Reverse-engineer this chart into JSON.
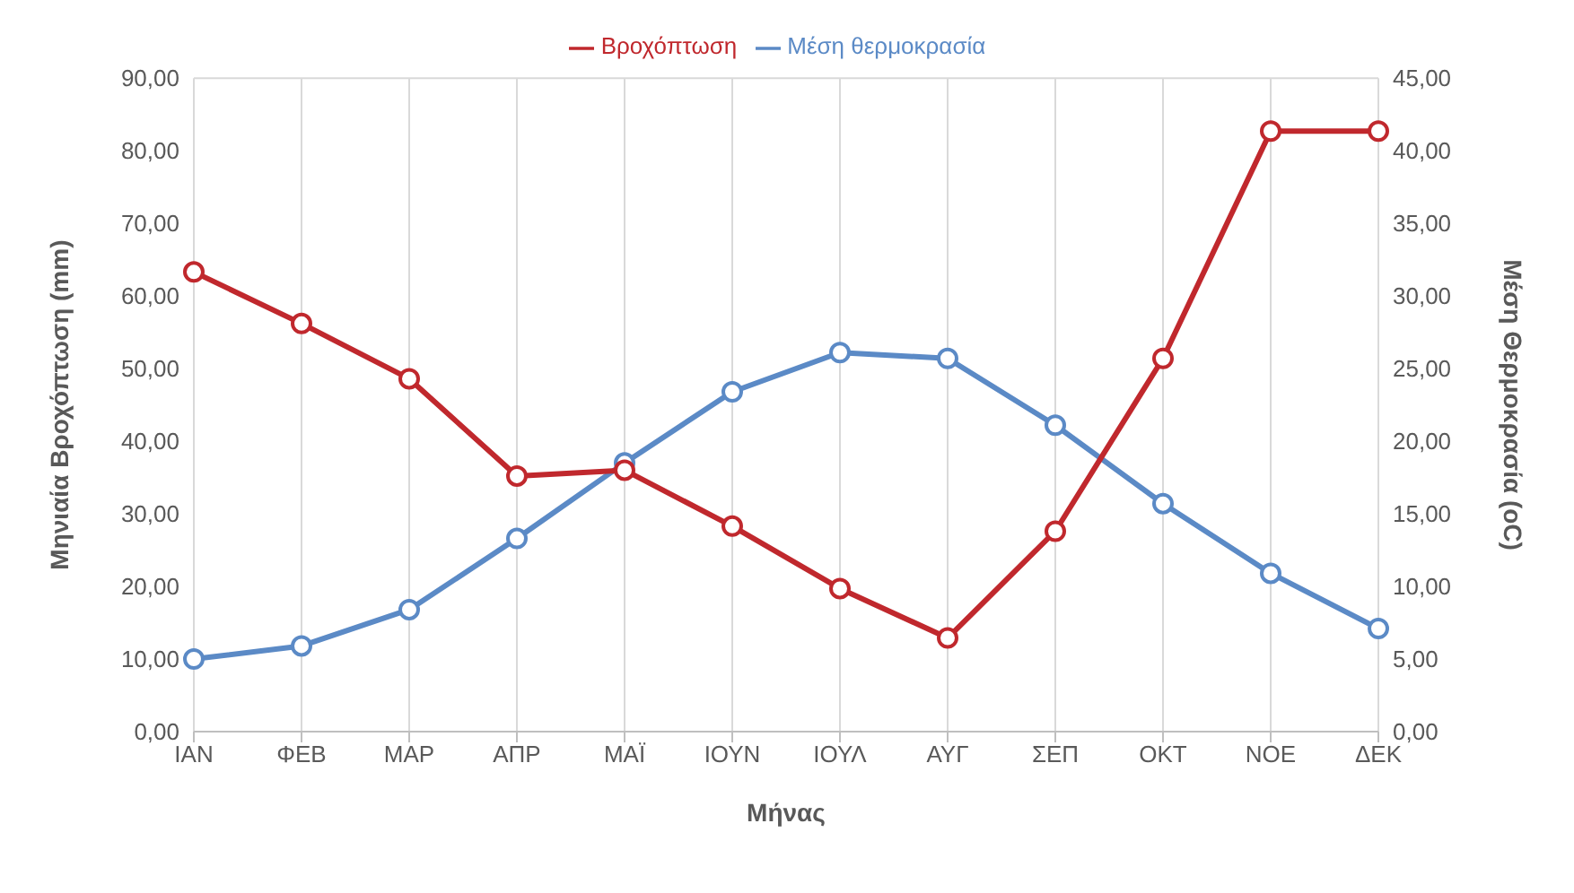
{
  "chart_data": {
    "type": "line",
    "xlabel": "Μήνας",
    "ylabel": "Μηνιαία Βροχόπτωση (mm)",
    "y2label": "Μέση Θερμοκρασία (oC)",
    "categories": [
      "ΙΑΝ",
      "ΦΕΒ",
      "ΜΑΡ",
      "ΑΠΡ",
      "ΜΑΪ",
      "ΙΟΥΝ",
      "ΙΟΥΛ",
      "ΑΥΓ",
      "ΣΕΠ",
      "ΟΚΤ",
      "ΝΟΕ",
      "ΔΕΚ"
    ],
    "series": [
      {
        "name": "Βροχόπτωση",
        "color": "#c0282d",
        "values": [
          63.3,
          56.2,
          48.6,
          35.2,
          36.0,
          28.3,
          19.7,
          12.9,
          27.6,
          51.4,
          82.7,
          82.7
        ]
      },
      {
        "name": "Μέση θερμοκρασία",
        "color": "#5b8ac6",
        "axis": "y2",
        "values": [
          5.0,
          5.9,
          8.4,
          13.3,
          18.5,
          23.4,
          26.1,
          25.7,
          21.1,
          15.7,
          10.9,
          7.1
        ]
      }
    ],
    "ylim": [
      0,
      90
    ],
    "yticks": [
      {
        "value": 0,
        "label": "0,00"
      },
      {
        "value": 10,
        "label": "10,00"
      },
      {
        "value": 20,
        "label": "20,00"
      },
      {
        "value": 30,
        "label": "30,00"
      },
      {
        "value": 40,
        "label": "40,00"
      },
      {
        "value": 50,
        "label": "50,00"
      },
      {
        "value": 60,
        "label": "60,00"
      },
      {
        "value": 70,
        "label": "70,00"
      },
      {
        "value": 80,
        "label": "80,00"
      },
      {
        "value": 90,
        "label": "90,00"
      }
    ],
    "y2lim": [
      0,
      45
    ],
    "y2ticks": [
      {
        "value": 0,
        "label": "0,00"
      },
      {
        "value": 5,
        "label": "5,00"
      },
      {
        "value": 10,
        "label": "10,00"
      },
      {
        "value": 15,
        "label": "15,00"
      },
      {
        "value": 20,
        "label": "20,00"
      },
      {
        "value": 25,
        "label": "25,00"
      },
      {
        "value": 30,
        "label": "30,00"
      },
      {
        "value": 35,
        "label": "35,00"
      },
      {
        "value": 40,
        "label": "40,00"
      },
      {
        "value": 45,
        "label": "45,00"
      }
    ],
    "grid": true,
    "legend": "top",
    "marker": "circle",
    "line_style": "solid"
  }
}
